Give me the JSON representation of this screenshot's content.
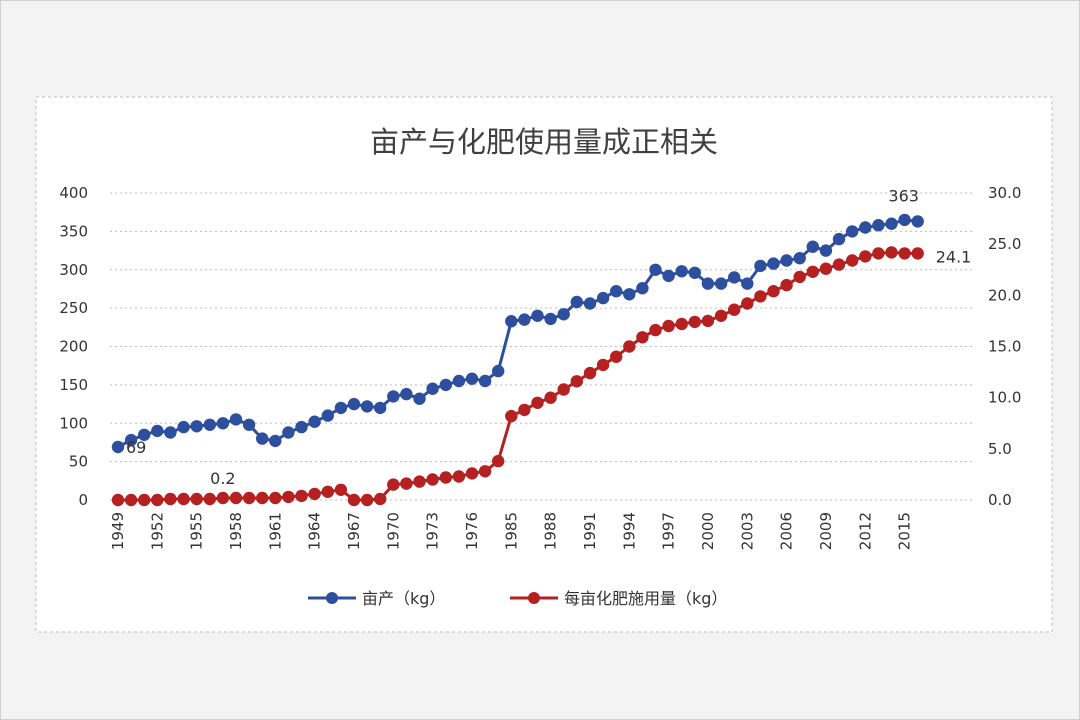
{
  "chart_data": {
    "type": "line",
    "title": "亩产与化肥使用量成正相关",
    "x": [
      "1949",
      "1950",
      "1951",
      "1952",
      "1953",
      "1954",
      "1955",
      "1956",
      "1957",
      "1958",
      "1959",
      "1960",
      "1961",
      "1962",
      "1963",
      "1964",
      "1965",
      "1966",
      "1967",
      "1968",
      "1969",
      "1970",
      "1971",
      "1972",
      "1973",
      "1974",
      "1975",
      "1976",
      "1977",
      "1978",
      "1985",
      "1986",
      "1987",
      "1988",
      "1989",
      "1990",
      "1991",
      "1992",
      "1993",
      "1994",
      "1995",
      "1996",
      "1997",
      "1998",
      "1999",
      "2000",
      "2001",
      "2002",
      "2003",
      "2004",
      "2005",
      "2006",
      "2007",
      "2008",
      "2009",
      "2010",
      "2011",
      "2012",
      "2013",
      "2014",
      "2015",
      "2016"
    ],
    "x_tick_labels": [
      "1949",
      "1952",
      "1955",
      "1958",
      "1961",
      "1964",
      "1967",
      "1970",
      "1973",
      "1976",
      "1985",
      "1988",
      "1991",
      "1994",
      "1997",
      "2000",
      "2003",
      "2006",
      "2009",
      "2012",
      "2015"
    ],
    "y_left": {
      "range": [
        0,
        400
      ],
      "ticks": [
        "0",
        "50",
        "100",
        "150",
        "200",
        "250",
        "300",
        "350",
        "400"
      ]
    },
    "y_right": {
      "range": [
        0,
        30
      ],
      "ticks": [
        "0.0",
        "5.0",
        "10.0",
        "15.0",
        "20.0",
        "25.0",
        "30.0"
      ]
    },
    "grid": "horizontal dotted",
    "legend_position": "bottom",
    "series": [
      {
        "name": "亩产（kg）",
        "axis": "left",
        "color": "#2e4e9e",
        "values": [
          69,
          78,
          85,
          90,
          88,
          95,
          96,
          98,
          100,
          105,
          98,
          80,
          77,
          88,
          95,
          102,
          110,
          120,
          125,
          122,
          120,
          135,
          138,
          132,
          145,
          150,
          155,
          158,
          155,
          168,
          233,
          235,
          240,
          236,
          242,
          258,
          256,
          263,
          272,
          268,
          276,
          300,
          292,
          298,
          296,
          282,
          282,
          290,
          282,
          305,
          308,
          312,
          315,
          330,
          325,
          340,
          350,
          355,
          358,
          360,
          365,
          363
        ]
      },
      {
        "name": "每亩化肥施用量（kg）",
        "axis": "right",
        "color": "#b52020",
        "values": [
          0.0,
          0.0,
          0.0,
          0.0,
          0.1,
          0.1,
          0.1,
          0.1,
          0.2,
          0.2,
          0.2,
          0.2,
          0.2,
          0.3,
          0.4,
          0.6,
          0.8,
          1.0,
          0.0,
          0.0,
          0.1,
          1.5,
          1.6,
          1.8,
          2.0,
          2.2,
          2.3,
          2.6,
          2.8,
          3.8,
          8.2,
          8.8,
          9.5,
          10.0,
          10.8,
          11.6,
          12.4,
          13.2,
          14.0,
          15.0,
          15.9,
          16.6,
          17.0,
          17.2,
          17.4,
          17.5,
          18.0,
          18.6,
          19.2,
          19.9,
          20.4,
          21.0,
          21.8,
          22.3,
          22.6,
          23.0,
          23.4,
          23.8,
          24.1,
          24.2,
          24.1,
          24.1
        ]
      }
    ],
    "annotations": [
      {
        "text": "69",
        "series": 0,
        "index": 0
      },
      {
        "text": "0.2",
        "series": 1,
        "index": 8
      },
      {
        "text": "363",
        "series": 0,
        "index": 61
      },
      {
        "text": "24.1",
        "series": 1,
        "index": 61
      }
    ]
  }
}
